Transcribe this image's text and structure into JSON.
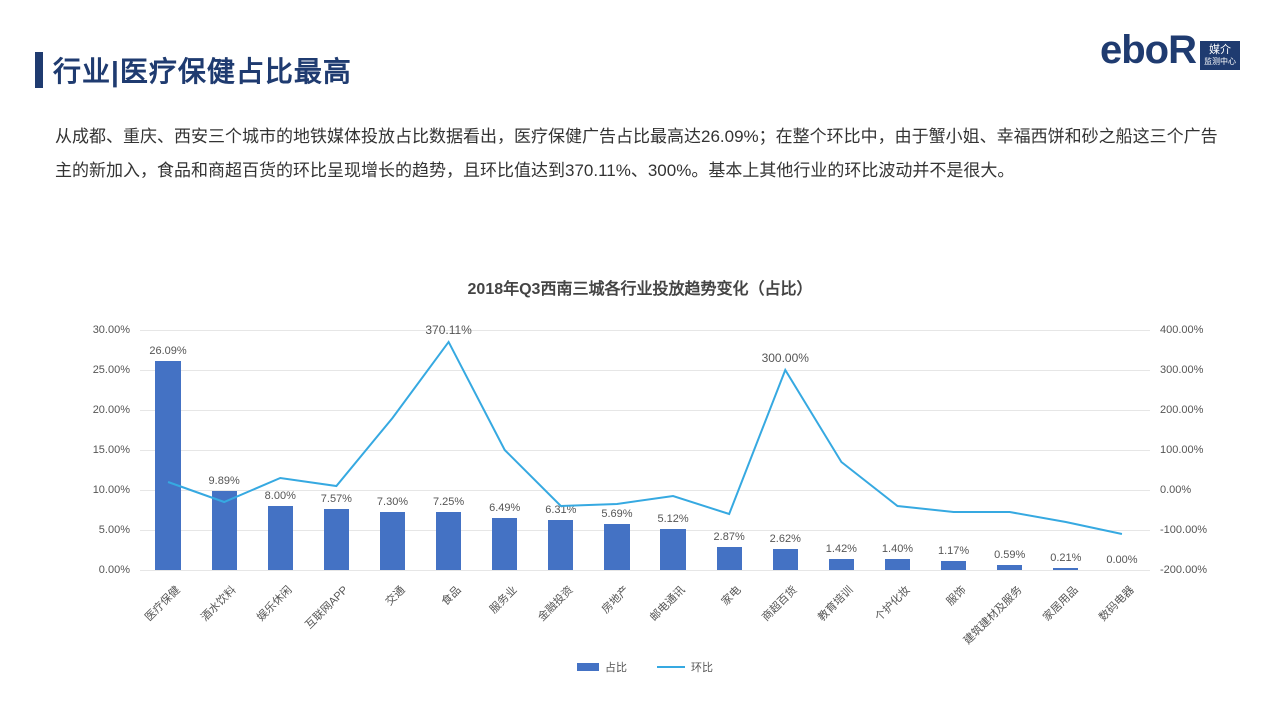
{
  "header": {
    "title": "行业|医疗保健占比最高",
    "accent_color": "#1f3b70"
  },
  "logo": {
    "text": "eboR",
    "badge_top": "媒介",
    "badge_bottom": "监测中心",
    "color": "#1f3b70"
  },
  "body": {
    "paragraph": "从成都、重庆、西安三个城市的地铁媒体投放占比数据看出，医疗保健广告占比最高达26.09%；在整个环比中，由于蟹小姐、幸福西饼和砂之船这三个广告主的新加入，食品和商超百货的环比呈现增长的趋势，且环比值达到370.11%、300%。基本上其他行业的环比波动并不是很大。",
    "text_color": "#333333",
    "font_size": 17
  },
  "chart": {
    "title": "2018年Q3西南三城各行业投放趋势变化（占比）",
    "type": "bar+line",
    "background_color": "#ffffff",
    "grid_color": "#e6e6e6",
    "categories": [
      "医疗保健",
      "酒水饮料",
      "娱乐休闲",
      "互联网APP",
      "交通",
      "食品",
      "服务业",
      "金融投资",
      "房地产",
      "邮电通讯",
      "家电",
      "商超百货",
      "教育培训",
      "个护化妆",
      "服饰",
      "建筑建材及服务",
      "家居用品",
      "数码电器"
    ],
    "bar": {
      "label": "占比",
      "values": [
        26.09,
        9.89,
        8.0,
        7.57,
        7.3,
        7.25,
        6.49,
        6.31,
        5.69,
        5.12,
        2.87,
        2.62,
        1.42,
        1.4,
        1.17,
        0.59,
        0.21,
        0.0
      ],
      "color": "#4472c4",
      "data_label_format": "0.00%",
      "bar_width_ratio": 0.45
    },
    "line": {
      "label": "环比",
      "values": [
        20,
        -30,
        30,
        10,
        180,
        370.11,
        100,
        -40,
        -35,
        -15,
        -60,
        300.0,
        70,
        -40,
        -55,
        -55,
        -80,
        -110
      ],
      "color": "#36a9e1",
      "line_width": 2
    },
    "left_axis": {
      "min": 0,
      "max": 30,
      "step": 5,
      "format": "0.00%",
      "ticks": [
        "0.00%",
        "5.00%",
        "10.00%",
        "15.00%",
        "20.00%",
        "25.00%",
        "30.00%"
      ]
    },
    "right_axis": {
      "min": -200,
      "max": 400,
      "step": 100,
      "format": "0.00%",
      "ticks": [
        "-200.00%",
        "-100.00%",
        "0.00%",
        "100.00%",
        "200.00%",
        "300.00%",
        "400.00%"
      ]
    },
    "category_label_rotation": -45,
    "label_fontsize": 11,
    "label_color": "#555555"
  },
  "legend": {
    "items": [
      {
        "key": "bar",
        "label": "占比",
        "color": "#4472c4"
      },
      {
        "key": "line",
        "label": "环比",
        "color": "#36a9e1"
      }
    ]
  }
}
